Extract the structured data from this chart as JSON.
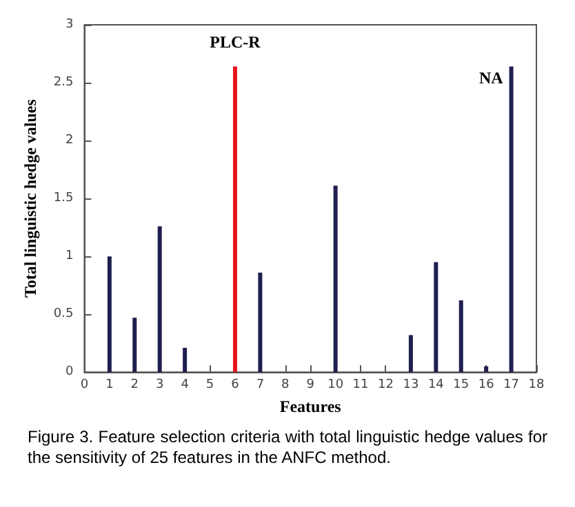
{
  "chart_data": {
    "type": "bar",
    "xlabel": "Features",
    "ylabel": "Total linguistic hedge values",
    "x": [
      1,
      2,
      3,
      4,
      6,
      7,
      10,
      13,
      14,
      15,
      16,
      17
    ],
    "values": [
      1.0,
      0.47,
      1.26,
      0.21,
      2.64,
      0.86,
      1.61,
      0.32,
      0.95,
      0.62,
      0.05,
      2.64
    ],
    "colors": [
      "#1f1f4f",
      "#1f1f4f",
      "#1f1f4f",
      "#1f1f4f",
      "#e8141b",
      "#1f1f4f",
      "#1f1f4f",
      "#1f1f4f",
      "#1f1f4f",
      "#1f1f4f",
      "#1f1f4f",
      "#1f1f4f"
    ],
    "xlim": [
      0,
      18
    ],
    "xticks": [
      0,
      1,
      2,
      3,
      4,
      5,
      6,
      7,
      8,
      9,
      10,
      11,
      12,
      13,
      14,
      15,
      16,
      17,
      18
    ],
    "ylim": [
      0,
      3
    ],
    "yticks": [
      0,
      0.5,
      1,
      1.5,
      2,
      2.5,
      3
    ],
    "annotations": [
      {
        "text": "PLC-R",
        "x": 6,
        "y": 2.64
      },
      {
        "text": "NA",
        "x": 17,
        "y": 2.64
      },
      "Figure 3. Feature selection criteria with total linguistic hedge values for the sensitivity of 25 features in the ANFC method."
    ]
  }
}
